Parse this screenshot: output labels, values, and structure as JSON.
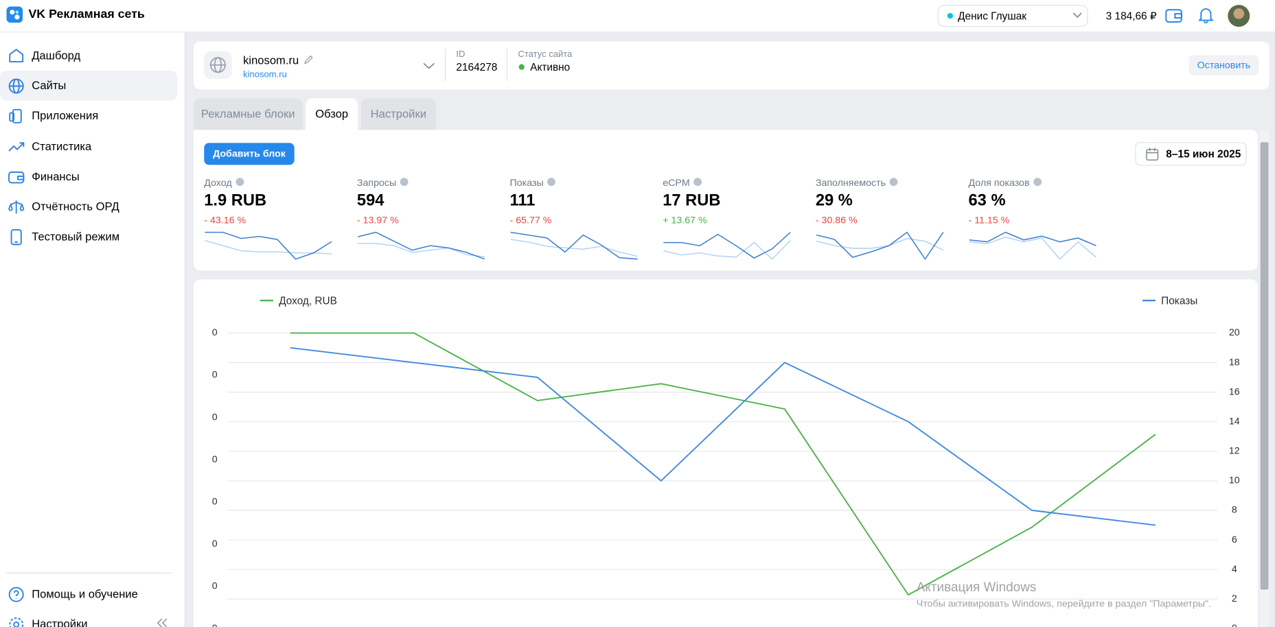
{
  "header": {
    "brand": "VK Рекламная сеть",
    "account": "Денис Глушак",
    "balance": "3 184,66 ₽"
  },
  "sidebar": {
    "items": [
      "Дашборд",
      "Сайты",
      "Приложения",
      "Статистика",
      "Финансы",
      "Отчётность ОРД",
      "Тестовый режим"
    ],
    "active": 1,
    "bottom": [
      "Помощь и обучение",
      "Настройки"
    ]
  },
  "site": {
    "name": "kinosom.ru",
    "link": "kinosom.ru",
    "id_label": "ID",
    "id": "2164278",
    "status_label": "Статус сайта",
    "status": "Активно",
    "stop_button": "Остановить"
  },
  "tabs": {
    "items": [
      "Рекламные блоки",
      "Обзор",
      "Настройки"
    ],
    "active": 1
  },
  "overview": {
    "add_button": "Добавить блок",
    "date_range": "8–15 июн 2025",
    "metrics": [
      {
        "label": "Доход",
        "value": "1.9 RUB",
        "change": "- 43.16 %",
        "trend": "down",
        "spark": {
          "current": [
            30,
            30,
            24,
            26,
            23,
            4,
            10,
            21
          ],
          "previous": [
            22,
            17,
            12,
            11,
            11,
            10,
            10,
            9
          ]
        }
      },
      {
        "label": "Запросы",
        "value": "594",
        "change": "- 13.97 %",
        "trend": "down",
        "spark": {
          "current": [
            18,
            20,
            16,
            12,
            14,
            13,
            11,
            8
          ],
          "previous": [
            15,
            15,
            14,
            11,
            12,
            13,
            10,
            9
          ]
        }
      },
      {
        "label": "Показы",
        "value": "111",
        "change": "- 65.77 %",
        "trend": "down",
        "spark": {
          "current": [
            32,
            30,
            28,
            18,
            30,
            23,
            14,
            13
          ],
          "previous": [
            27,
            25,
            22,
            21,
            20,
            22,
            18,
            15
          ]
        }
      },
      {
        "label": "eCPM",
        "value": "17 RUB",
        "change": "+ 13.67 %",
        "trend": "up",
        "spark": {
          "current": [
            18,
            18,
            15,
            26,
            15,
            3,
            12,
            28
          ],
          "previous": [
            10,
            6,
            8,
            5,
            4,
            18,
            2,
            20
          ]
        }
      },
      {
        "label": "Заполняемость",
        "value": "29 %",
        "change": "- 30.86 %",
        "trend": "down",
        "spark": {
          "current": [
            27,
            22,
            2,
            8,
            15,
            30,
            0,
            30
          ],
          "previous": [
            20,
            15,
            12,
            12,
            15,
            23,
            20,
            10
          ]
        }
      },
      {
        "label": "Доля показов",
        "value": "63 %",
        "change": "- 11.15 %",
        "trend": "down",
        "spark": {
          "current": [
            22,
            20,
            30,
            22,
            26,
            20,
            24,
            16
          ],
          "previous": [
            20,
            18,
            25,
            20,
            24,
            2,
            20,
            4
          ]
        }
      }
    ]
  },
  "chart": {
    "type": "line",
    "series": [
      {
        "name": "Доход, RUB",
        "color": "#4bb34b",
        "axis": "y",
        "values": [
          0.35,
          0.35,
          0.27,
          0.29,
          0.26,
          0.04,
          0.12,
          0.23
        ]
      },
      {
        "name": "Показы",
        "color": "#3f8ae0",
        "axis": "y2",
        "values": [
          19,
          18,
          17,
          10,
          18,
          14,
          8,
          7
        ]
      }
    ],
    "ylim": [
      0,
      0.35
    ],
    "yticks": [
      {
        "value": 0,
        "label": "0"
      },
      {
        "value": 0.05,
        "label": "0"
      },
      {
        "value": 0.1,
        "label": "0"
      },
      {
        "value": 0.15,
        "label": "0"
      },
      {
        "value": 0.2,
        "label": "0"
      },
      {
        "value": 0.25,
        "label": "0"
      },
      {
        "value": 0.3,
        "label": "0"
      },
      {
        "value": 0.35,
        "label": "0"
      }
    ],
    "y2lim": [
      0,
      20
    ],
    "y2ticks": [
      0,
      2,
      4,
      6,
      8,
      10,
      12,
      14,
      16,
      18,
      20
    ],
    "grid": true
  },
  "watermark": {
    "title": "Активация Windows",
    "text": "Чтобы активировать Windows, перейдите в раздел \"Параметры\"."
  }
}
